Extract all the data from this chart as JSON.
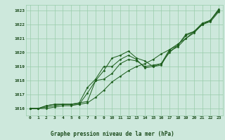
{
  "title": "Graphe pression niveau de la mer (hPa)",
  "bg_color": "#cde8dc",
  "grid_color": "#99ccaa",
  "line_color": "#1a5c1a",
  "text_color": "#1a4a1a",
  "xlim": [
    -0.5,
    23.5
  ],
  "ylim": [
    1015.5,
    1023.4
  ],
  "yticks": [
    1016,
    1017,
    1018,
    1019,
    1020,
    1021,
    1022,
    1023
  ],
  "xticks": [
    0,
    1,
    2,
    3,
    4,
    5,
    6,
    7,
    8,
    9,
    10,
    11,
    12,
    13,
    14,
    15,
    16,
    17,
    18,
    19,
    20,
    21,
    22,
    23
  ],
  "line1": [
    1016.0,
    1016.0,
    1016.2,
    1016.3,
    1016.3,
    1016.3,
    1016.3,
    1017.1,
    1018.0,
    1018.7,
    1019.6,
    1019.8,
    1020.1,
    1019.6,
    1019.4,
    1019.0,
    1019.2,
    1020.0,
    1020.5,
    1021.2,
    1021.5,
    1022.0,
    1022.3,
    1023.0
  ],
  "line2": [
    1016.0,
    1016.0,
    1016.2,
    1016.3,
    1016.3,
    1016.3,
    1016.4,
    1016.5,
    1018.0,
    1018.1,
    1018.5,
    1019.2,
    1019.5,
    1019.4,
    1019.0,
    1019.1,
    1019.2,
    1020.2,
    1020.5,
    1021.3,
    1021.5,
    1022.1,
    1022.3,
    1023.1
  ],
  "line3": [
    1016.0,
    1016.0,
    1016.1,
    1016.2,
    1016.3,
    1016.3,
    1016.4,
    1017.5,
    1018.1,
    1019.0,
    1019.0,
    1019.5,
    1019.8,
    1019.5,
    1018.9,
    1019.0,
    1019.1,
    1020.1,
    1020.4,
    1021.0,
    1021.4,
    1022.0,
    1022.2,
    1022.9
  ],
  "line4": [
    1016.0,
    1016.0,
    1016.0,
    1016.1,
    1016.2,
    1016.2,
    1016.3,
    1016.4,
    1016.8,
    1017.3,
    1017.9,
    1018.3,
    1018.7,
    1019.0,
    1019.2,
    1019.5,
    1019.9,
    1020.2,
    1020.6,
    1021.0,
    1021.5,
    1022.0,
    1022.3,
    1023.0
  ],
  "figsize": [
    3.2,
    2.0
  ],
  "dpi": 100
}
